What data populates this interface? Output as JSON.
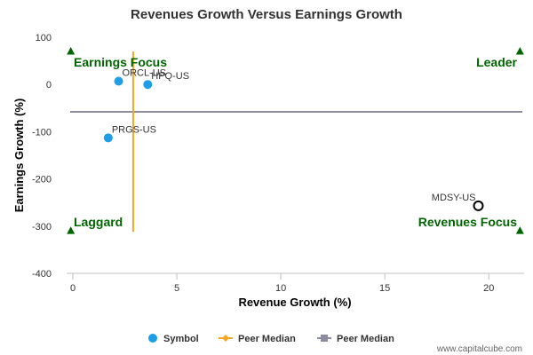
{
  "chart_data": {
    "type": "scatter",
    "title": "Revenues Growth Versus Earnings Growth",
    "xlabel": "Revenue Growth (%)",
    "ylabel": "Earnings Growth (%)",
    "xlim": [
      -0.3,
      21.7
    ],
    "ylim": [
      -400,
      100
    ],
    "x_ticks": [
      0,
      5,
      10,
      15,
      20
    ],
    "y_ticks": [
      100,
      0,
      -100,
      -200,
      -300,
      -400
    ],
    "x_tick_labels": [
      "0",
      "5",
      "10",
      "15",
      "20"
    ],
    "y_tick_labels": [
      "100",
      "0",
      "-100",
      "-200",
      "-300",
      "-400"
    ],
    "grid": false,
    "legend_position": "bottom",
    "points": [
      {
        "label": "ORCL-US",
        "x": 2.2,
        "y": 7,
        "style": "filled"
      },
      {
        "label": "HPQ-US",
        "x": 3.6,
        "y": 0,
        "style": "filled"
      },
      {
        "label": "PRGS-US",
        "x": 1.7,
        "y": -113,
        "style": "filled"
      },
      {
        "label": "MDSY-US",
        "x": 19.5,
        "y": -257,
        "style": "hollow"
      }
    ],
    "peer_median_revenue": 2.9,
    "peer_median_revenue_span": [
      -312,
      70
    ],
    "peer_median_earnings": -58,
    "quadrants": {
      "top_left": "Earnings Focus",
      "top_right": "Leader",
      "bottom_left": "Laggard",
      "bottom_right": "Revenues Focus"
    },
    "corner_markers": [
      {
        "x": -0.1,
        "y": 70
      },
      {
        "x": 21.5,
        "y": 70
      },
      {
        "x": -0.1,
        "y": -310
      },
      {
        "x": 21.5,
        "y": -310
      }
    ],
    "legend": [
      {
        "label": "Symbol",
        "kind": "dot"
      },
      {
        "label": "Peer Median",
        "kind": "line-diamond"
      },
      {
        "label": "Peer Median",
        "kind": "line-square"
      }
    ],
    "colors": {
      "point": "#1e9ee6",
      "hollow_stroke": "#000000",
      "revenue_median": "#f5a623",
      "earnings_median": "#8c8c9e",
      "quadrant_text": "#006400",
      "axis_text": "#333333"
    }
  },
  "watermark": "www.capitalcube.com"
}
